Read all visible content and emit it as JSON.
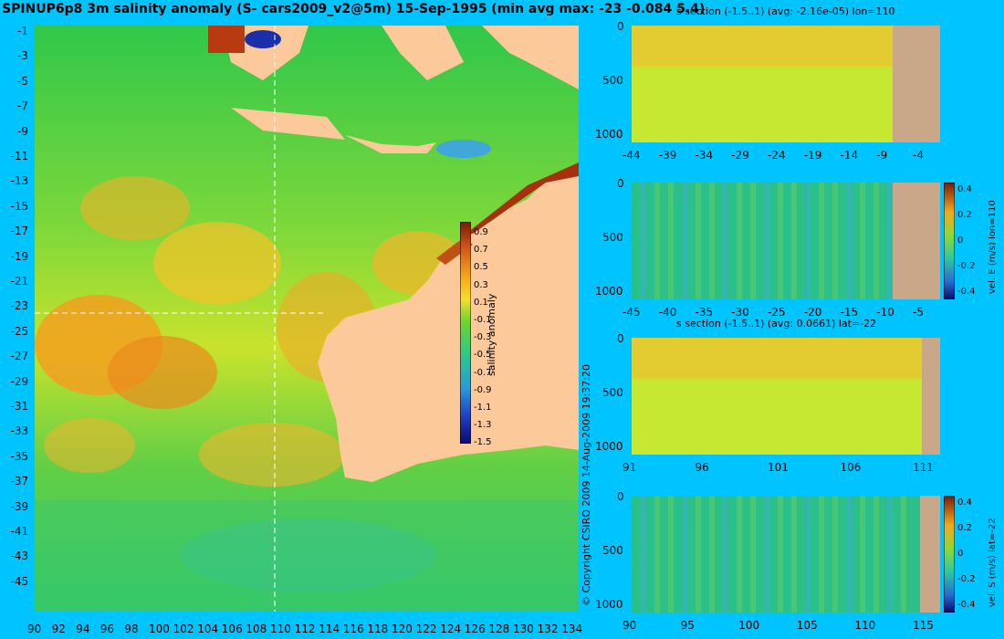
{
  "main_title": "SPINUP6p8 3m salinity anomaly (S- cars2009_v2@5m) 15-Sep-1995 (min avg max: -23 -0.084 5.4)",
  "copyright": "© Copyright CSIRO 2009   14-Aug-2009 19:37:20",
  "map": {
    "lat_ticks": [
      "-1",
      "-3",
      "-5",
      "-7",
      "-9",
      "-11",
      "-13",
      "-15",
      "-17",
      "-19",
      "-21",
      "-23",
      "-25",
      "-27",
      "-29",
      "-31",
      "-33",
      "-35",
      "-37",
      "-39",
      "-41",
      "-43",
      "-45"
    ],
    "lon_ticks": [
      "90",
      "92",
      "94",
      "96",
      "98",
      "100",
      "102",
      "104",
      "106",
      "108",
      "110",
      "112",
      "114",
      "116",
      "118",
      "120",
      "122",
      "124",
      "126",
      "128",
      "130",
      "132",
      "134"
    ],
    "colorbar_label": "salinity anomaly",
    "colorbar_ticks": [
      "0.9",
      "0.7",
      "0.5",
      "0.3",
      "0.1",
      "-0.1",
      "-0.3",
      "-0.5",
      "-0.7",
      "-0.9",
      "-1.1",
      "-1.3",
      "-1.5"
    ],
    "section_lon": "110",
    "section_lat": "-22"
  },
  "panels": [
    {
      "title": "s section (-1.5..1) (avg: -2.16e-05) lon=110",
      "y_ticks": [
        "0",
        "500",
        "1000"
      ],
      "x_ticks": [
        "-44",
        "-39",
        "-34",
        "-29",
        "-24",
        "-19",
        "-14",
        "-9",
        "-4"
      ],
      "side_label": ""
    },
    {
      "title": "",
      "y_ticks": [
        "0",
        "500",
        "1000"
      ],
      "x_ticks": [
        "-45",
        "-40",
        "-35",
        "-30",
        "-25",
        "-20",
        "-15",
        "-10",
        "-5"
      ],
      "side_label": "vel. E (m/s) lon=110",
      "cb_ticks": [
        "0.4",
        "0.2",
        "0",
        "-0.2",
        "-0.4"
      ]
    },
    {
      "title": "s section (-1.5..1) (avg: 0.0661) lat=-22",
      "y_ticks": [
        "0",
        "500",
        "1000"
      ],
      "x_ticks": [
        "91",
        "96",
        "101",
        "106",
        "111"
      ],
      "side_label": ""
    },
    {
      "title": "",
      "y_ticks": [
        "0",
        "500",
        "1000"
      ],
      "x_ticks": [
        "90",
        "95",
        "100",
        "105",
        "110",
        "115"
      ],
      "side_label": "vel. S (m/s) lat=-22",
      "cb_ticks": [
        "0.4",
        "0.2",
        "0",
        "-0.2",
        "-0.4"
      ]
    }
  ]
}
